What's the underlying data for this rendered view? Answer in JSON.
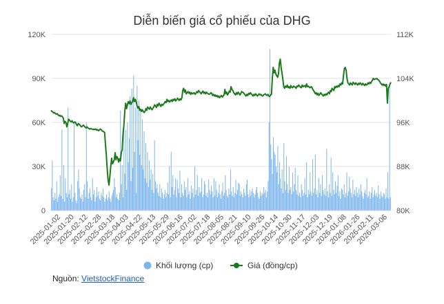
{
  "chart_data": {
    "type": "bar+line",
    "title": "Diễn biến giá cổ phiếu của DHG",
    "x_tick_labels": [
      "2025-01-02",
      "2025-01-20",
      "2025-02-12",
      "2025-02-28",
      "2025-03-18",
      "2025-04-03",
      "2025-04-22",
      "2025-05-13",
      "2025-05-29",
      "2025-06-16",
      "2025-07-02",
      "2025-07-18",
      "2025-08-05",
      "2025-08-21",
      "2025-09-10",
      "2025-09-26",
      "2025-10-14",
      "2025-10-30",
      "2025-11-17",
      "2025-12-03",
      "2025-12-19",
      "2026-01-08",
      "2026-01-26",
      "2026-02-11",
      "2026-03-06"
    ],
    "y_left": {
      "ylim": [
        0,
        120000
      ],
      "ticks": [
        "0",
        "30K",
        "60K",
        "90K",
        "120K"
      ]
    },
    "y_right": {
      "ylim": [
        80000,
        112000
      ],
      "ticks": [
        "80K",
        "88K",
        "96K",
        "104K",
        "112K"
      ]
    },
    "grid": true,
    "legend_position": "bottom",
    "legend": [
      {
        "name": "Khối lượng (cp)",
        "color": "#7cb5ec",
        "shape": "circle"
      },
      {
        "name": "Giá (đồng/cp)",
        "color": "#1a7a1a",
        "shape": "line-dot"
      }
    ],
    "series": [
      {
        "name": "Khối lượng (cp)",
        "axis": "left",
        "color": "#7cb5ec",
        "values": [
          15000,
          34000,
          9000,
          7000,
          12000,
          8000,
          20000,
          6000,
          9000,
          11000,
          24000,
          10000,
          55000,
          8000,
          31000,
          6000,
          22000,
          12000,
          9000,
          70000,
          11000,
          14000,
          8000,
          18000,
          6000,
          9000,
          60000,
          12000,
          7000,
          5000,
          20000,
          28000,
          15000,
          9000,
          8000,
          11000,
          6000,
          14000,
          18000,
          9000,
          60000,
          20000,
          8000,
          12000,
          15000,
          9000,
          7000,
          22000,
          11000,
          14000,
          6000,
          9000,
          16000,
          10000,
          13000,
          8000,
          7000,
          12000,
          10000,
          15000,
          9000,
          6000,
          8000,
          11000,
          7000,
          9000,
          13000,
          8000,
          6000,
          10000,
          12000,
          14000,
          22000,
          16000,
          9000,
          11000,
          8000,
          7000,
          12000,
          68000,
          18000,
          31000,
          9000,
          65000,
          25000,
          55000,
          14000,
          60000,
          33000,
          49000,
          78000,
          20000,
          83000,
          29000,
          92000,
          40000,
          70000,
          12000,
          85000,
          48000,
          75000,
          38000,
          69000,
          31000,
          62000,
          28000,
          54000,
          22000,
          46000,
          19000,
          40000,
          16000,
          34000,
          21000,
          28000,
          14000,
          25000,
          12000,
          48000,
          20000,
          15000,
          18000,
          12000,
          10000,
          18000,
          9000,
          15000,
          12000,
          8000,
          11000,
          14000,
          9000,
          12000,
          19000,
          11000,
          30000,
          9000,
          40000,
          16000,
          24000,
          11000,
          14000,
          22000,
          9000,
          21000,
          15000,
          12000,
          27000,
          9000,
          18000,
          12000,
          10000,
          20000,
          14000,
          16000,
          9000,
          22000,
          11000,
          13000,
          8000,
          17000,
          12000,
          15000,
          9000,
          30000,
          11000,
          14000,
          24000,
          10000,
          16000,
          12000,
          13000,
          22000,
          9000,
          11000,
          20000,
          18000,
          10000,
          12000,
          9000,
          21000,
          14000,
          11000,
          17000,
          13000,
          9000,
          22000,
          10000,
          20000,
          14000,
          9000,
          12000,
          18000,
          11000,
          8000,
          13000,
          19000,
          10000,
          12000,
          24000,
          14000,
          10000,
          9000,
          15000,
          11000,
          28000,
          13000,
          10000,
          16000,
          9000,
          12000,
          21000,
          11000,
          14000,
          19000,
          18000,
          10000,
          13000,
          11000,
          9000,
          15000,
          12000,
          10000,
          18000,
          21000,
          11000,
          9000,
          14000,
          10000,
          13000,
          15000,
          12000,
          9000,
          11000,
          14000,
          16000,
          12000,
          9000,
          8000,
          13000,
          10000,
          12000,
          11000,
          16000,
          12000,
          14000,
          9000,
          13000,
          20000,
          60000,
          110000,
          45000,
          35000,
          25000,
          50000,
          40000,
          38000,
          30000,
          26000,
          44000,
          18000,
          33000,
          22000,
          15000,
          28000,
          12000,
          46000,
          20000,
          14000,
          37000,
          18000,
          12000,
          30000,
          14000,
          16000,
          11000,
          26000,
          13000,
          18000,
          29000,
          14000,
          11000,
          24000,
          10000,
          12000,
          9000,
          18000,
          14000,
          10000,
          12000,
          22000,
          11000,
          33000,
          9000,
          14000,
          11000,
          26000,
          13000,
          10000,
          35000,
          12000,
          15000,
          38000,
          11000,
          14000,
          9000,
          22000,
          12000,
          18000,
          10000,
          24000,
          14000,
          11000,
          15000,
          10000,
          42000,
          13000,
          9000,
          18000,
          12000,
          36000,
          10000,
          26000,
          14000,
          11000,
          20000,
          12000,
          17000,
          24000,
          10000,
          13000,
          8000,
          15000,
          14000,
          11000,
          18000,
          9000,
          12000,
          26000,
          10000,
          13000,
          23000,
          15000,
          12000,
          9000,
          21000,
          11000,
          14000,
          10000,
          16000,
          12000,
          9000,
          15000,
          11000,
          18000,
          13000,
          10000,
          8000,
          12000,
          14000,
          11000,
          22000,
          9000,
          10000,
          13000,
          8000,
          12000,
          16000,
          9000,
          11000,
          14000,
          10000,
          12000,
          9000,
          17000,
          11000,
          8000,
          13000,
          10000,
          9000,
          12000,
          11000,
          8000,
          15000,
          9000,
          26000,
          8000,
          85000,
          9000
        ]
      },
      {
        "name": "Giá (đồng/cp)",
        "axis": "right",
        "color": "#1a7a1a",
        "values": [
          98200,
          98000,
          97900,
          97700,
          97800,
          97600,
          97500,
          97600,
          97400,
          97200,
          97300,
          97100,
          97200,
          97000,
          96800,
          95800,
          96200,
          96000,
          95200,
          95800,
          96600,
          96400,
          96200,
          96100,
          96300,
          96000,
          95900,
          96100,
          96000,
          95600,
          95400,
          95800,
          95700,
          95500,
          95300,
          95200,
          95400,
          95500,
          95300,
          95100,
          95000,
          95200,
          95000,
          94900,
          94800,
          94900,
          94800,
          94800,
          94700,
          94800,
          94700,
          94800,
          94600,
          94700,
          94500,
          94600,
          94800,
          94700,
          94500,
          94400,
          94300,
          94200,
          92000,
          90000,
          87500,
          85500,
          84600,
          86200,
          88000,
          89500,
          88500,
          88800,
          89200,
          90500,
          89200,
          89800,
          89500,
          88800,
          89400,
          89000,
          90500,
          91000,
          94000,
          95500,
          98000,
          99500,
          98500,
          99200,
          99800,
          99400,
          99900,
          99300,
          99600,
          99800,
          100500,
          99800,
          100200,
          99700,
          99000,
          98600,
          98900,
          98200,
          98400,
          98000,
          98300,
          98000,
          97800,
          98000,
          98500,
          98200,
          98800,
          98600,
          98400,
          98800,
          98500,
          98300,
          98600,
          98800,
          99200,
          99000,
          98700,
          99300,
          99000,
          99500,
          99200,
          98900,
          99300,
          99100,
          99300,
          99500,
          99800,
          99600,
          100200,
          99800,
          100000,
          99700,
          99900,
          100100,
          99800,
          100200,
          100000,
          100300,
          99900,
          100100,
          100400,
          100200,
          100000,
          100300,
          100100,
          100500,
          101800,
          102200,
          101500,
          101900,
          101200,
          101400,
          101600,
          101300,
          101500,
          101100,
          101400,
          101200,
          101300,
          101400,
          101100,
          101300,
          101600,
          101400,
          101800,
          101600,
          101400,
          101200,
          101500,
          101700,
          101300,
          101500,
          101200,
          101500,
          101300,
          101200,
          101100,
          101200,
          101400,
          101300,
          100900,
          101100,
          100800,
          101000,
          100700,
          100900,
          100600,
          100800,
          100500,
          100700,
          100900,
          100600,
          100800,
          101000,
          102000,
          101200,
          101500,
          101000,
          101300,
          101700,
          101500,
          102500,
          102000,
          101800,
          101400,
          101200,
          101000,
          101400,
          101100,
          101500,
          101300,
          101000,
          101200,
          101600,
          101500,
          101400,
          101200,
          101000,
          100800,
          101100,
          100900,
          101300,
          101100,
          101400,
          101200,
          101000,
          100800,
          101100,
          100900,
          101200,
          101000,
          100800,
          101000,
          101200,
          101000,
          101100,
          100900,
          100800,
          101000,
          101100,
          101200,
          101000,
          100900,
          101100,
          100800,
          100700,
          101000,
          101100,
          104000,
          106000,
          105000,
          105500,
          104800,
          104500,
          104200,
          104800,
          106800,
          107500,
          106000,
          105000,
          103800,
          102500,
          102200,
          102600,
          102400,
          102800,
          102300,
          102500,
          102200,
          102700,
          102400,
          102300,
          102600,
          102500,
          102400,
          102200,
          102600,
          102500,
          102800,
          102600,
          102400,
          102300,
          102800,
          102500,
          102600,
          102700,
          102400,
          103000,
          102500,
          102600,
          102400,
          102300,
          102500,
          102400,
          102000,
          101800,
          101500,
          101200,
          101400,
          101000,
          101300,
          100900,
          101100,
          101400,
          101200,
          101000,
          100800,
          101100,
          100900,
          101200,
          101000,
          101300,
          101500,
          101200,
          101800,
          101600,
          102200,
          102000,
          101800,
          102500,
          102300,
          102600,
          102400,
          102700,
          102500,
          103000,
          102800,
          103200,
          103000,
          104500,
          105800,
          106000,
          105500,
          104000,
          103200,
          103000,
          102800,
          103200,
          103000,
          102800,
          103300,
          103100,
          102900,
          103200,
          103000,
          102800,
          103100,
          102900,
          103200,
          103000,
          102800,
          103100,
          102900,
          102700,
          103000,
          102800,
          102900,
          103200,
          103000,
          103300,
          103100,
          103400,
          103700,
          104000,
          103800,
          103900,
          103900,
          104000,
          103800,
          103700,
          103500,
          103200,
          103000,
          102800,
          103000,
          102700,
          102900,
          102600,
          102900,
          99500,
          102200,
          102500,
          103000,
          103300
        ]
      }
    ]
  },
  "source": {
    "label": "Nguồn:",
    "link_text": "VietstockFinance"
  }
}
